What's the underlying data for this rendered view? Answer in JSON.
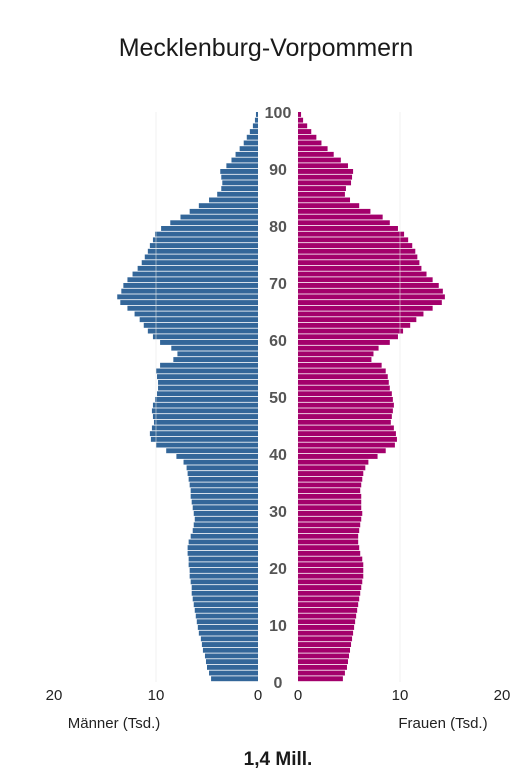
{
  "chart_data": {
    "type": "bar",
    "orientation": "horizontal-population-pyramid",
    "title": "Mecklenburg-Vorpommern",
    "age_ticks": [
      "0",
      "10",
      "20",
      "30",
      "40",
      "50",
      "60",
      "70",
      "80",
      "90",
      "100"
    ],
    "x_ticks_left": [
      "20",
      "10",
      "0"
    ],
    "x_ticks_right": [
      "0",
      "10",
      "20"
    ],
    "xlim": [
      0,
      20
    ],
    "ages": [
      0,
      1,
      2,
      3,
      4,
      5,
      6,
      7,
      8,
      9,
      10,
      11,
      12,
      13,
      14,
      15,
      16,
      17,
      18,
      19,
      20,
      21,
      22,
      23,
      24,
      25,
      26,
      27,
      28,
      29,
      30,
      31,
      32,
      33,
      34,
      35,
      36,
      37,
      38,
      39,
      40,
      41,
      42,
      43,
      44,
      45,
      46,
      47,
      48,
      49,
      50,
      51,
      52,
      53,
      54,
      55,
      56,
      57,
      58,
      59,
      60,
      61,
      62,
      63,
      64,
      65,
      66,
      67,
      68,
      69,
      70,
      71,
      72,
      73,
      74,
      75,
      76,
      77,
      78,
      79,
      80,
      81,
      82,
      83,
      84,
      85,
      86,
      87,
      88,
      89,
      90,
      91,
      92,
      93,
      94,
      95,
      96,
      97,
      98,
      99
    ],
    "series": [
      {
        "name": "Männer (Tsd.)",
        "color": "#336699",
        "side": "left",
        "values": [
          4.6,
          4.8,
          5.0,
          5.1,
          5.2,
          5.4,
          5.5,
          5.6,
          5.8,
          5.9,
          6.0,
          6.1,
          6.2,
          6.3,
          6.4,
          6.5,
          6.5,
          6.6,
          6.7,
          6.7,
          6.8,
          6.8,
          6.9,
          6.9,
          6.8,
          6.6,
          6.4,
          6.3,
          6.2,
          6.3,
          6.4,
          6.5,
          6.6,
          6.6,
          6.7,
          6.8,
          6.9,
          7.0,
          7.3,
          8.0,
          9.0,
          10.0,
          10.5,
          10.6,
          10.4,
          10.2,
          10.3,
          10.4,
          10.3,
          10.1,
          9.9,
          9.8,
          9.8,
          9.9,
          10.0,
          9.6,
          8.3,
          7.9,
          8.5,
          9.6,
          10.3,
          10.8,
          11.2,
          11.6,
          12.1,
          12.8,
          13.5,
          13.8,
          13.4,
          13.2,
          12.8,
          12.3,
          11.8,
          11.4,
          11.1,
          10.8,
          10.6,
          10.3,
          10.1,
          9.5,
          8.6,
          7.6,
          6.7,
          5.8,
          4.8,
          4.0,
          3.6,
          3.5,
          3.6,
          3.7,
          3.1,
          2.6,
          2.2,
          1.8,
          1.4,
          1.1,
          0.8,
          0.5,
          0.3,
          0.2
        ]
      },
      {
        "name": "Frauen (Tsd.)",
        "color": "#a3006b",
        "side": "right",
        "values": [
          4.4,
          4.6,
          4.8,
          4.9,
          5.0,
          5.1,
          5.2,
          5.3,
          5.4,
          5.5,
          5.6,
          5.7,
          5.8,
          5.9,
          6.0,
          6.1,
          6.2,
          6.3,
          6.4,
          6.4,
          6.4,
          6.3,
          6.1,
          6.0,
          5.9,
          5.9,
          6.0,
          6.1,
          6.2,
          6.3,
          6.2,
          6.2,
          6.2,
          6.1,
          6.2,
          6.3,
          6.4,
          6.6,
          6.9,
          7.8,
          8.6,
          9.5,
          9.7,
          9.6,
          9.4,
          9.1,
          9.2,
          9.3,
          9.4,
          9.3,
          9.2,
          9.0,
          8.9,
          8.8,
          8.6,
          8.2,
          7.2,
          7.4,
          7.9,
          9.0,
          9.8,
          10.3,
          11.0,
          11.6,
          12.3,
          13.2,
          14.1,
          14.4,
          14.2,
          13.8,
          13.2,
          12.6,
          12.1,
          11.9,
          11.7,
          11.5,
          11.2,
          10.8,
          10.4,
          9.8,
          9.0,
          8.3,
          7.1,
          6.0,
          5.1,
          4.6,
          4.7,
          5.2,
          5.3,
          5.4,
          4.9,
          4.2,
          3.5,
          2.9,
          2.3,
          1.8,
          1.3,
          0.9,
          0.5,
          0.3
        ]
      }
    ],
    "xlabel_left": "Männer (Tsd.)",
    "xlabel_right": "Frauen (Tsd.)",
    "total": "1,4 Mill.",
    "grid": "vertical gridlines at 10 on each side",
    "gridline_color": "#e8e8e8"
  }
}
